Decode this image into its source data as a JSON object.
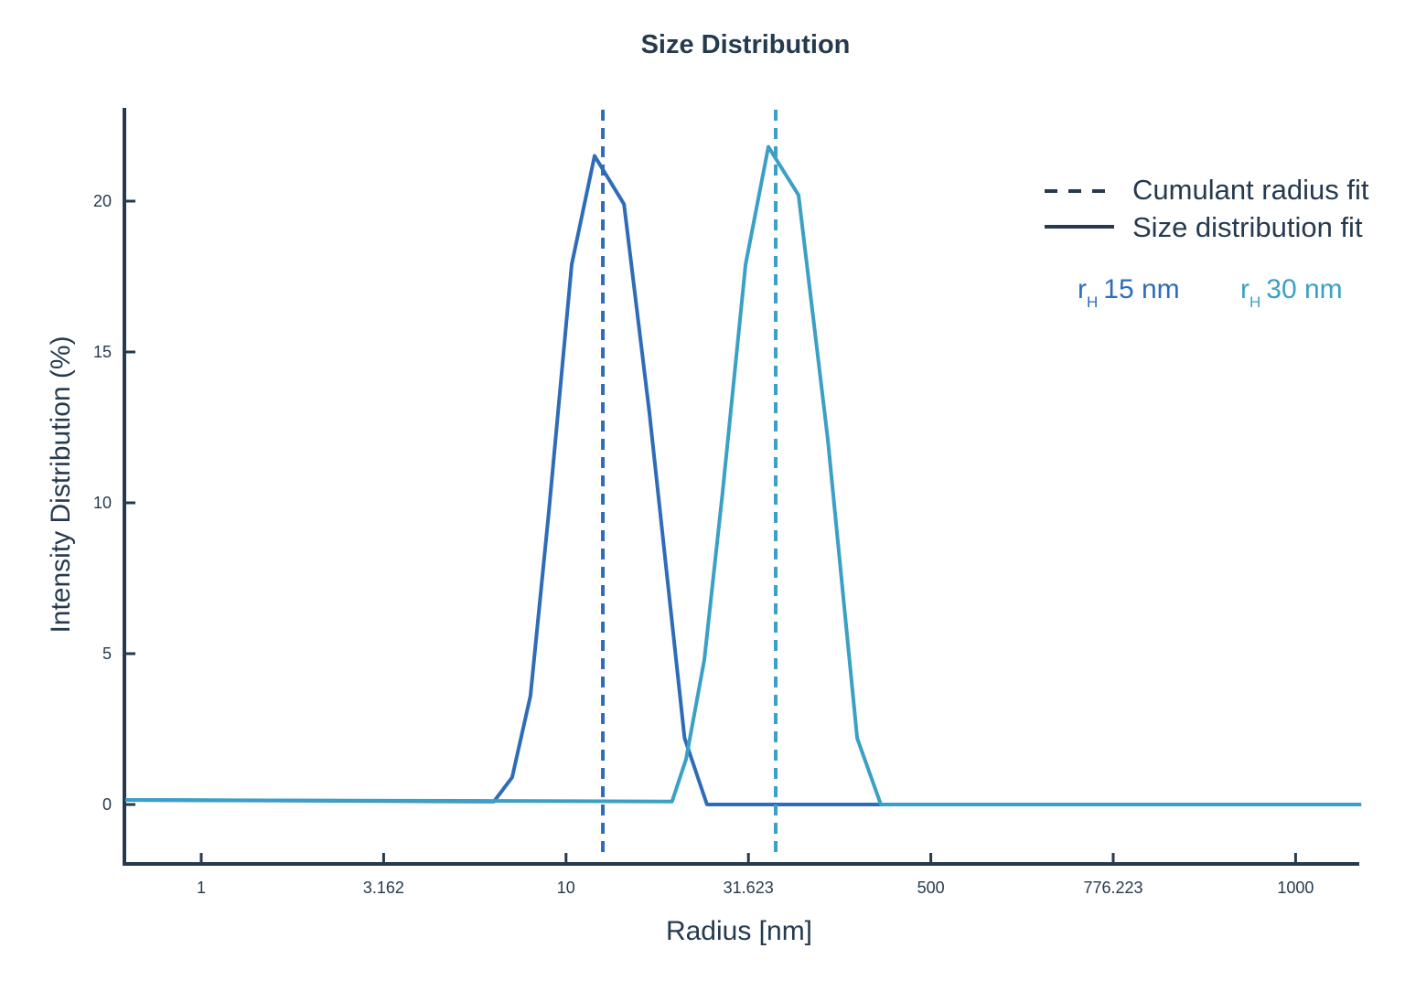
{
  "chart_data": {
    "type": "line",
    "title": "Size Distribution",
    "xlabel": "Radius [nm]",
    "ylabel": "Intensity Distribution (%)",
    "x_scale": "log",
    "x_tick_labels": [
      "1",
      "3.162",
      "10",
      "31.623",
      "500",
      "776.223",
      "1000"
    ],
    "y_ticks": [
      0,
      5,
      10,
      15,
      20
    ],
    "ylim": [
      -2,
      23
    ],
    "grid": false,
    "legend_position": "top-right",
    "legend": [
      {
        "label": "Cumulant radius fit",
        "style": "dashed"
      },
      {
        "label": "Size distribution fit",
        "style": "solid"
      }
    ],
    "series": [
      {
        "label_prefix": "r",
        "label_sub": "H",
        "label_value": "15 nm",
        "color": "#2f6cb8",
        "cumulant_radius": 12.6,
        "x": [
          0.62,
          6.34,
          7.11,
          7.98,
          8.96,
          10.35,
          11.96,
          14.4,
          16.9,
          21.1,
          24.3,
          1507
        ],
        "y": [
          0.15,
          0.1,
          0.9,
          3.6,
          9.7,
          17.9,
          21.5,
          19.9,
          13.0,
          2.2,
          0,
          0
        ]
      },
      {
        "label_prefix": "r",
        "label_sub": "H",
        "label_value": "30 nm",
        "color": "#3aa0c6",
        "cumulant_radius": 37.5,
        "x": [
          0.62,
          19.5,
          21.3,
          23.9,
          26.8,
          31.0,
          35.8,
          43.3,
          52.1,
          62.7,
          72.8,
          1507
        ],
        "y": [
          0.15,
          0.1,
          1.5,
          4.8,
          10.3,
          17.9,
          21.8,
          20.2,
          12.1,
          2.2,
          0,
          0
        ]
      }
    ]
  },
  "colors": {
    "axis": "#253a4f"
  }
}
